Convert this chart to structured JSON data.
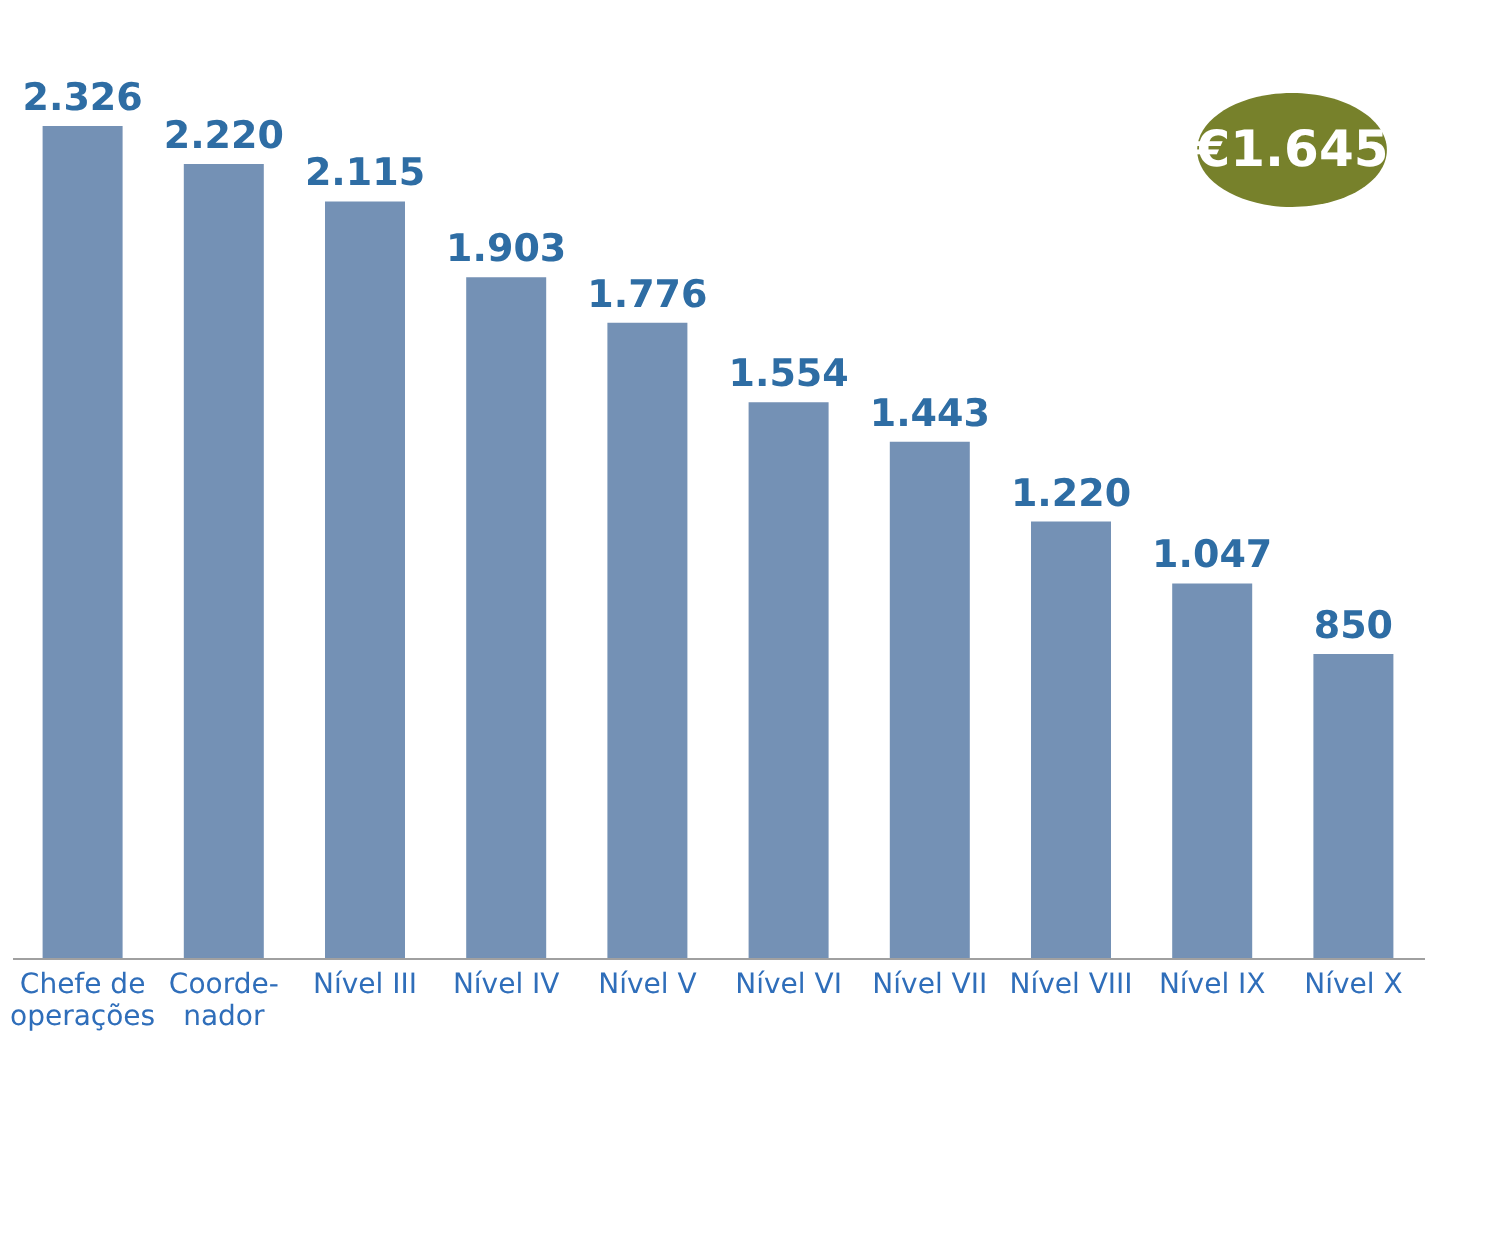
{
  "chart_data": {
    "type": "bar",
    "categories": [
      "Chefe de\noperações",
      "Coorde-\nnador",
      "Nível III",
      "Nível IV",
      "Nível V",
      "Nível VI",
      "Nível VII",
      "Nível VIII",
      "Nível IX",
      "Nível X"
    ],
    "values": [
      2326,
      2220,
      2115,
      1903,
      1776,
      1554,
      1443,
      1220,
      1047,
      850
    ],
    "value_labels": [
      "2.326",
      "2.220",
      "2.115",
      "1.903",
      "1.776",
      "1.554",
      "1.443",
      "1.220",
      "1.047",
      "850"
    ],
    "color": "#7491b5",
    "annotations": [
      "€1.645"
    ],
    "tick_labels": "x"
  }
}
